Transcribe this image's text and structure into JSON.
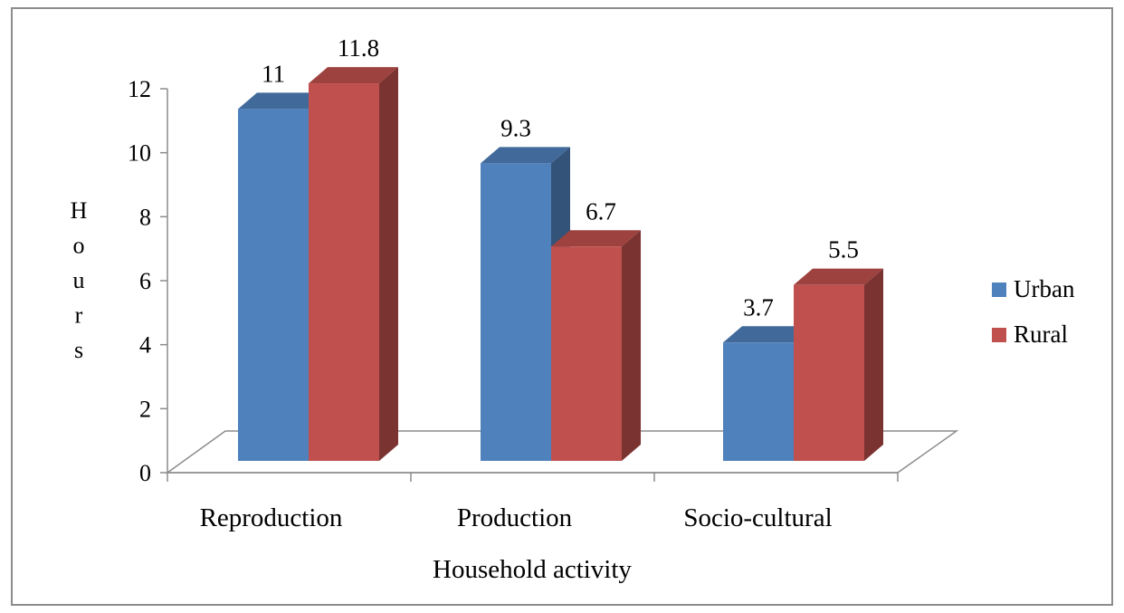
{
  "chart_data": {
    "type": "bar",
    "style": "3d-clustered-column",
    "title": "",
    "xlabel": "Household activity",
    "ylabel": "Hours",
    "ylim": [
      0,
      12
    ],
    "yticks": [
      "0",
      "2",
      "4",
      "6",
      "8",
      "10",
      "12"
    ],
    "grid": false,
    "legend": "right",
    "categories": [
      "Reproduction",
      "Production",
      "Socio-cultural"
    ],
    "series": [
      {
        "name": "Urban",
        "values": [
          11,
          9.3,
          3.7
        ],
        "labels": [
          "11",
          "9.3",
          "3.7"
        ],
        "color": "#4F81BD"
      },
      {
        "name": "Rural",
        "values": [
          11.8,
          6.7,
          5.5
        ],
        "labels": [
          "11.8",
          "6.7",
          "5.5"
        ],
        "color": "#C0504D"
      }
    ]
  }
}
